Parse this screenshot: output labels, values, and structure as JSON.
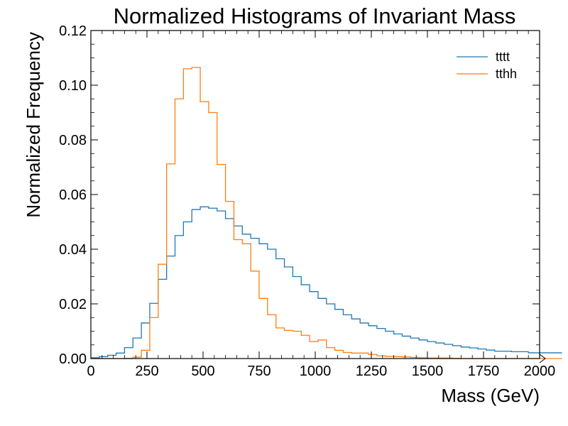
{
  "chart_data": {
    "type": "line",
    "title": "Normalized Histograms of Invariant Mass",
    "xlabel": "Mass (GeV)",
    "ylabel": "Normalized Frequency",
    "xlim": [
      0,
      2000
    ],
    "ylim": [
      0,
      0.12
    ],
    "x_ticks": [
      "0",
      "250",
      "500",
      "750",
      "1000",
      "1250",
      "1500",
      "1750",
      "2000"
    ],
    "y_ticks": [
      "0.00",
      "0.02",
      "0.04",
      "0.06",
      "0.08",
      "0.10",
      "0.12"
    ],
    "grid": false,
    "legend_position": "top-right",
    "bin_edges_start": 0,
    "bin_width": 37.5,
    "series": [
      {
        "name": "tttt",
        "color": "#1f77b4",
        "values": [
          0.0003,
          0.0007,
          0.0012,
          0.002,
          0.004,
          0.0075,
          0.013,
          0.0202,
          0.029,
          0.0375,
          0.045,
          0.05,
          0.0545,
          0.0555,
          0.055,
          0.054,
          0.0512,
          0.0485,
          0.0455,
          0.044,
          0.042,
          0.04,
          0.0365,
          0.0335,
          0.03,
          0.027,
          0.0245,
          0.022,
          0.02,
          0.018,
          0.016,
          0.0145,
          0.013,
          0.012,
          0.011,
          0.01,
          0.009,
          0.0082,
          0.0075,
          0.0068,
          0.0062,
          0.0057,
          0.0052,
          0.0047,
          0.0042,
          0.0039,
          0.0035,
          0.0031,
          0.0027,
          0.0027,
          0.0025,
          0.0025,
          0.0021,
          0.0021,
          0.0021,
          0.0021
        ]
      },
      {
        "name": "tthh",
        "color": "#ff7f0e",
        "values": [
          0,
          0,
          0,
          0,
          0.0001,
          0.0005,
          0.003,
          0.015,
          0.0345,
          0.0712,
          0.095,
          0.106,
          0.1065,
          0.094,
          0.09,
          0.071,
          0.0575,
          0.0435,
          0.042,
          0.032,
          0.022,
          0.016,
          0.0112,
          0.0103,
          0.01,
          0.0085,
          0.0062,
          0.0068,
          0.004,
          0.003,
          0.0022,
          0.002,
          0.002,
          0.0015,
          0.001,
          0.0008,
          0.0007,
          0.0006,
          0.0004,
          0.0003,
          0.0002,
          0.0002,
          0.0002,
          0.0001,
          0,
          0,
          0,
          0,
          0,
          0,
          0,
          0,
          0,
          0,
          0,
          0
        ]
      }
    ]
  }
}
